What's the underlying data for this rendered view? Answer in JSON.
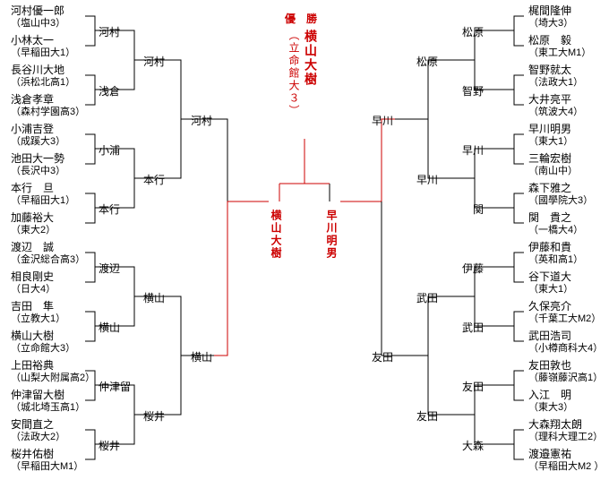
{
  "colors": {
    "text": "#000000",
    "highlight": "#cc0000",
    "background": "#ffffff"
  },
  "fonts": {
    "base_size": 12,
    "affil_size": 11,
    "vertical_letter_spacing": 2
  },
  "layout": {
    "type": "single-elimination-bracket",
    "sides": 2,
    "rounds_per_side": 5,
    "entrants_per_side": 16
  },
  "champion_label": "優　勝",
  "champion": {
    "name": "横山大樹",
    "affil": "（立命館大３）"
  },
  "finalists": {
    "left": "横山大樹",
    "right": "早川明男"
  },
  "left": {
    "entrants": [
      {
        "name": "河村優一郎",
        "affil": "（塩山中3）"
      },
      {
        "name": "小林太一",
        "affil": "（早稲田大1）"
      },
      {
        "name": "長谷川大地",
        "affil": "（浜松北高1）"
      },
      {
        "name": "浅倉孝章",
        "affil": "（森村学園高3）"
      },
      {
        "name": "小浦吉登",
        "affil": "（成蹊大3）"
      },
      {
        "name": "池田大一勢",
        "affil": "（長沢中3）"
      },
      {
        "name": "本行　旦",
        "affil": "（早稲田大1）"
      },
      {
        "name": "加藤裕大",
        "affil": "（東大2）"
      },
      {
        "name": "渡辺　誠",
        "affil": "（金沢総合高3）"
      },
      {
        "name": "相良剛史",
        "affil": "（日大4）"
      },
      {
        "name": "吉田　隼",
        "affil": "（立教大1）"
      },
      {
        "name": "横山大樹",
        "affil": "（立命館大3）"
      },
      {
        "name": "上田裕典",
        "affil": "（山梨大附属高2）"
      },
      {
        "name": "仲津留大樹",
        "affil": "（城北埼玉高1）"
      },
      {
        "name": "安間直之",
        "affil": "（法政大2）"
      },
      {
        "name": "桜井佑樹",
        "affil": "（早稲田大M1）"
      }
    ],
    "r2": [
      "河村",
      "浅倉",
      "小浦",
      "本行",
      "渡辺",
      "横山",
      "仲津留",
      "桜井"
    ],
    "r3": [
      "河村",
      "本行",
      "横山",
      "桜井"
    ],
    "r4": [
      "河村",
      "横山"
    ],
    "r5": [
      "横山"
    ]
  },
  "right": {
    "entrants": [
      {
        "name": "梶間隆伸",
        "affil": "（埼大3）"
      },
      {
        "name": "松原　毅",
        "affil": "（東工大M1）"
      },
      {
        "name": "智野就太",
        "affil": "（法政大1）"
      },
      {
        "name": "大井亮平",
        "affil": "（筑波大4）"
      },
      {
        "name": "早川明男",
        "affil": "（東大1）"
      },
      {
        "name": "三輪宏樹",
        "affil": "（南山中）"
      },
      {
        "name": "森下雅之",
        "affil": "（國學院大3）"
      },
      {
        "name": "関　貴之",
        "affil": "（一橋大4）"
      },
      {
        "name": "伊藤和貴",
        "affil": "（英和高1）"
      },
      {
        "name": "谷下道大",
        "affil": "（東大1）"
      },
      {
        "name": "久保亮介",
        "affil": "（千葉工大M2）"
      },
      {
        "name": "武田浩司",
        "affil": "（小樽商科大4）"
      },
      {
        "name": "友田敦也",
        "affil": "（藤嶺藤沢高1）"
      },
      {
        "name": "入江　明",
        "affil": "（東大3）"
      },
      {
        "name": "大森翔太朗",
        "affil": "（理科大理工2）"
      },
      {
        "name": "渡邉憲祐",
        "affil": "（早稲田大M2 ）"
      }
    ],
    "r2": [
      "松原",
      "智野",
      "早川",
      "関",
      "伊藤",
      "武田",
      "友田",
      "大森"
    ],
    "r3": [
      "松原",
      "早川",
      "武田",
      "友田"
    ],
    "r4": [
      "早川",
      "友田"
    ],
    "r5": [
      "早川"
    ]
  }
}
